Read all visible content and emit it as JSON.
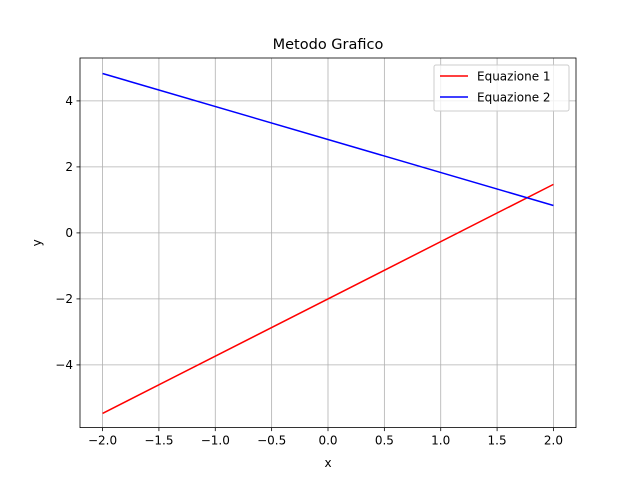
{
  "chart_data": {
    "type": "line",
    "title": "Metodo Grafico",
    "xlabel": "x",
    "ylabel": "y",
    "xlim": [
      -2.2,
      2.2
    ],
    "ylim": [
      -5.9,
      5.3
    ],
    "x_ticks": [
      -2.0,
      -1.5,
      -1.0,
      -0.5,
      0.0,
      0.5,
      1.0,
      1.5,
      2.0
    ],
    "x_tick_labels": [
      "−2.0",
      "−1.5",
      "−1.0",
      "−0.5",
      "0.0",
      "0.5",
      "1.0",
      "1.5",
      "2.0"
    ],
    "y_ticks": [
      -4,
      -2,
      0,
      2,
      4
    ],
    "y_tick_labels": [
      "−4",
      "−2",
      "0",
      "2",
      "4"
    ],
    "grid": true,
    "legend_position": "top-right",
    "x": [
      -2.0,
      2.0
    ],
    "series": [
      {
        "name": "Equazione 1",
        "color": "#ff0000",
        "values": [
          -5.47,
          1.47
        ]
      },
      {
        "name": "Equazione 2",
        "color": "#0000ff",
        "values": [
          4.83,
          0.83
        ]
      }
    ]
  }
}
